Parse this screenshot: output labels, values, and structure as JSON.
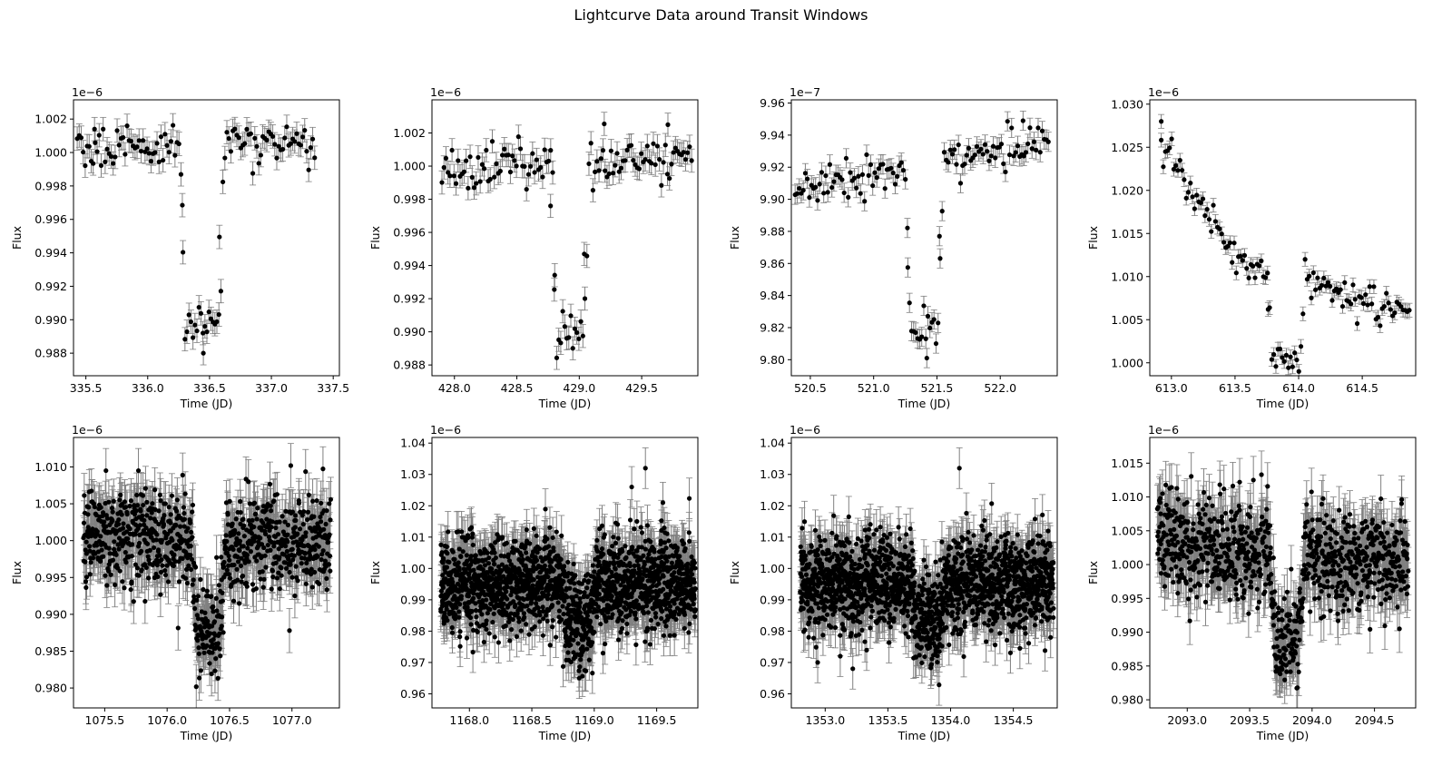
{
  "figure": {
    "title": "Lightcurve Data around Transit Windows"
  },
  "style": {
    "point_color": "#000000",
    "errorbar_color": "#808080"
  },
  "chart_data": [
    {
      "type": "scatter",
      "xlabel": "Time (JD)",
      "ylabel": "Flux",
      "offset_text": "1e−6",
      "scale": 1e-06,
      "xlim": [
        335.4,
        337.55
      ],
      "ylim": [
        0.98665,
        1.00315
      ],
      "xticks": [
        335.5,
        336.0,
        336.5,
        337.0,
        337.5
      ],
      "xticklabels": [
        "335.5",
        "336.0",
        "336.5",
        "337.0",
        "337.5"
      ],
      "yticks": [
        0.988,
        0.99,
        0.992,
        0.994,
        0.996,
        0.998,
        1.0,
        1.002
      ],
      "yticklabels": [
        "0.988",
        "0.990",
        "0.992",
        "0.994",
        "0.996",
        "0.998",
        "1.000",
        "1.002"
      ],
      "t_range": [
        335.43,
        337.35
      ],
      "dense": false,
      "n_points": 120,
      "yerr": 0.0007,
      "baseline": {
        "start": 1.0003,
        "end": 1.0005
      },
      "noise": 0.0006,
      "transit": {
        "center": 336.44,
        "duration": 0.35,
        "ingress": 0.03,
        "depth": 0.0106
      },
      "outliers": [
        [
          335.57,
          1.0014
        ],
        [
          336.28,
          0.99685
        ],
        [
          336.45,
          0.988
        ],
        [
          336.58,
          0.99495
        ]
      ]
    },
    {
      "type": "scatter",
      "xlabel": "Time (JD)",
      "ylabel": "Flux",
      "offset_text": "1e−6",
      "scale": 1e-06,
      "xlim": [
        427.82,
        429.95
      ],
      "ylim": [
        0.98735,
        1.004
      ],
      "xticks": [
        428.0,
        428.5,
        429.0,
        429.5
      ],
      "xticklabels": [
        "428.0",
        "428.5",
        "429.0",
        "429.5"
      ],
      "yticks": [
        0.988,
        0.99,
        0.992,
        0.994,
        0.996,
        0.998,
        1.0,
        1.002
      ],
      "yticklabels": [
        "0.988",
        "0.990",
        "0.992",
        "0.994",
        "0.996",
        "0.998",
        "1.000",
        "1.002"
      ],
      "t_range": [
        427.9,
        429.9
      ],
      "dense": false,
      "n_points": 125,
      "yerr": 0.0007,
      "baseline": {
        "start": 0.9997,
        "end": 1.0007
      },
      "noise": 0.0007,
      "transit": {
        "center": 428.93,
        "duration": 0.3,
        "ingress": 0.04,
        "depth": 0.0105
      },
      "outliers": [
        [
          428.77,
          0.9976
        ],
        [
          428.8,
          0.99255
        ],
        [
          429.04,
          0.9947
        ],
        [
          429.2,
          1.00255
        ],
        [
          429.71,
          1.0025
        ]
      ]
    },
    {
      "type": "scatter",
      "xlabel": "Time (JD)",
      "ylabel": "Flux",
      "offset_text": "1e−7",
      "scale": 1e-07,
      "xlim": [
        520.35,
        522.45
      ],
      "ylim": [
        9.79,
        9.962
      ],
      "xticks": [
        520.5,
        521.0,
        521.5,
        522.0
      ],
      "xticklabels": [
        "520.5",
        "521.0",
        "521.5",
        "522.0"
      ],
      "yticks": [
        9.8,
        9.82,
        9.84,
        9.86,
        9.88,
        9.9,
        9.92,
        9.94,
        9.96
      ],
      "yticklabels": [
        "9.80",
        "9.82",
        "9.84",
        "9.86",
        "9.88",
        "9.90",
        "9.92",
        "9.94",
        "9.96"
      ],
      "t_range": [
        520.38,
        522.38
      ],
      "dense": false,
      "n_points": 125,
      "yerr": 0.006,
      "baseline": {
        "start": 9.905,
        "end": 9.937
      },
      "noise": 0.006,
      "transit": {
        "center": 521.4,
        "duration": 0.3,
        "ingress": 0.04,
        "depth": 0.1
      },
      "outliers": [
        [
          521.27,
          9.8575
        ],
        [
          521.52,
          9.877
        ],
        [
          521.42,
          9.801
        ],
        [
          522.18,
          9.949
        ]
      ]
    },
    {
      "type": "scatter",
      "xlabel": "Time (JD)",
      "ylabel": "Flux",
      "offset_text": "1e−6",
      "scale": 1e-06,
      "xlim": [
        612.83,
        614.92
      ],
      "ylim": [
        0.9985,
        1.0305
      ],
      "xticks": [
        613.0,
        613.5,
        614.0,
        614.5
      ],
      "xticklabels": [
        "613.0",
        "613.5",
        "614.0",
        "614.5"
      ],
      "yticks": [
        1.0,
        1.005,
        1.01,
        1.015,
        1.02,
        1.025,
        1.03
      ],
      "yticklabels": [
        "1.000",
        "1.005",
        "1.010",
        "1.015",
        "1.020",
        "1.025",
        "1.030"
      ],
      "t_range": [
        612.92,
        614.87
      ],
      "dense": false,
      "n_points": 120,
      "yerr": 0.0008,
      "baseline_points": [
        [
          612.92,
          1.025
        ],
        [
          613.0,
          1.0245
        ],
        [
          613.2,
          1.019
        ],
        [
          613.5,
          1.0125
        ],
        [
          613.75,
          1.0105
        ],
        [
          614.0,
          1.0095
        ],
        [
          614.2,
          1.0095
        ],
        [
          614.5,
          1.007
        ],
        [
          614.87,
          1.0062
        ]
      ],
      "noise": 0.0009,
      "transit": {
        "center": 613.9,
        "duration": 0.3,
        "ingress": 0.04,
        "depth": 0.0095
      },
      "outliers": [
        [
          612.92,
          1.028
        ],
        [
          613.76,
          1.0062
        ]
      ]
    },
    {
      "type": "scatter",
      "xlabel": "Time (JD)",
      "ylabel": "Flux",
      "offset_text": "1e−6",
      "scale": 1e-06,
      "xlim": [
        1075.25,
        1077.38
      ],
      "ylim": [
        0.9773,
        1.014
      ],
      "xticks": [
        1075.5,
        1076.0,
        1076.5,
        1077.0
      ],
      "xticklabels": [
        "1075.5",
        "1076.0",
        "1076.5",
        "1077.0"
      ],
      "yticks": [
        0.98,
        0.985,
        0.99,
        0.995,
        1.0,
        1.005,
        1.01
      ],
      "yticklabels": [
        "0.980",
        "0.985",
        "0.990",
        "0.995",
        "1.000",
        "1.005",
        "1.010"
      ],
      "t_range": [
        1075.33,
        1077.31
      ],
      "dense": true,
      "n_points": 900,
      "yerr": 0.003,
      "baseline": {
        "start": 1.0005,
        "end": 0.9995
      },
      "noise": 0.0033,
      "transit": {
        "center": 1076.33,
        "duration": 0.28,
        "ingress": 0.05,
        "depth": 0.012
      },
      "outliers": [
        [
          1075.51,
          1.0095
        ],
        [
          1075.77,
          1.0095
        ],
        [
          1076.98,
          0.9878
        ],
        [
          1076.53,
          0.9988
        ]
      ]
    },
    {
      "type": "scatter",
      "xlabel": "Time (JD)",
      "ylabel": "Flux",
      "offset_text": "1e−6",
      "scale": 1e-06,
      "xlim": [
        1167.7,
        1169.83
      ],
      "ylim": [
        0.9555,
        1.0418
      ],
      "xticks": [
        1168.0,
        1168.5,
        1169.0,
        1169.5
      ],
      "xticklabels": [
        "1168.0",
        "1168.5",
        "1169.0",
        "1169.5"
      ],
      "yticks": [
        0.96,
        0.97,
        0.98,
        0.99,
        1.0,
        1.01,
        1.02,
        1.03,
        1.04
      ],
      "yticklabels": [
        "0.96",
        "0.97",
        "0.98",
        "0.99",
        "1.00",
        "1.01",
        "1.02",
        "1.03",
        "1.04"
      ],
      "t_range": [
        1167.77,
        1169.81
      ],
      "dense": true,
      "n_points": 1800,
      "yerr": 0.0065,
      "baseline": {
        "start": 0.995,
        "end": 0.995
      },
      "noise": 0.0075,
      "transit": {
        "center": 1168.87,
        "duration": 0.28,
        "ingress": 0.05,
        "depth": 0.012
      },
      "outliers": [
        [
          1169.41,
          1.032
        ],
        [
          1169.3,
          1.026
        ],
        [
          1169.55,
          1.021
        ],
        [
          1168.88,
          0.965
        ]
      ]
    },
    {
      "type": "scatter",
      "xlabel": "Time (JD)",
      "ylabel": "Flux",
      "offset_text": "1e−6",
      "scale": 1e-06,
      "xlim": [
        1352.73,
        1354.85
      ],
      "ylim": [
        0.9555,
        1.0418
      ],
      "xticks": [
        1353.0,
        1353.5,
        1354.0,
        1354.5
      ],
      "xticklabels": [
        "1353.0",
        "1353.5",
        "1354.0",
        "1354.5"
      ],
      "yticks": [
        0.96,
        0.97,
        0.98,
        0.99,
        1.0,
        1.01,
        1.02,
        1.03,
        1.04
      ],
      "yticklabels": [
        "0.96",
        "0.97",
        "0.98",
        "0.99",
        "1.00",
        "1.01",
        "1.02",
        "1.03",
        "1.04"
      ],
      "t_range": [
        1352.8,
        1354.82
      ],
      "dense": true,
      "n_points": 1800,
      "yerr": 0.0065,
      "baseline": {
        "start": 0.995,
        "end": 0.995
      },
      "noise": 0.0075,
      "transit": {
        "center": 1353.82,
        "duration": 0.28,
        "ingress": 0.05,
        "depth": 0.012
      },
      "outliers": [
        [
          1354.07,
          1.032
        ],
        [
          1353.22,
          0.968
        ],
        [
          1353.12,
          0.972
        ]
      ]
    },
    {
      "type": "scatter",
      "xlabel": "Time (JD)",
      "ylabel": "Flux",
      "offset_text": "1e−6",
      "scale": 1e-06,
      "xlim": [
        2092.7,
        2094.83
      ],
      "ylim": [
        0.9788,
        1.0188
      ],
      "xticks": [
        2093.0,
        2093.5,
        2094.0,
        2094.5
      ],
      "xticklabels": [
        "2093.0",
        "2093.5",
        "2094.0",
        "2094.5"
      ],
      "yticks": [
        0.98,
        0.985,
        0.99,
        0.995,
        1.0,
        1.005,
        1.01,
        1.015
      ],
      "yticklabels": [
        "0.980",
        "0.985",
        "0.990",
        "0.995",
        "1.000",
        "1.005",
        "1.010",
        "1.015"
      ],
      "t_range": [
        2092.76,
        2094.77
      ],
      "dense": true,
      "n_points": 900,
      "yerr": 0.0035,
      "baseline": {
        "start": 1.003,
        "end": 1.0005
      },
      "noise": 0.0037,
      "transit": {
        "center": 2093.8,
        "duration": 0.28,
        "ingress": 0.05,
        "depth": 0.013
      },
      "outliers": [
        [
          2093.53,
          1.0125
        ],
        [
          2093.76,
          0.9845
        ],
        [
          2094.7,
          0.9905
        ],
        [
          2093.42,
          1.0122
        ]
      ]
    }
  ]
}
